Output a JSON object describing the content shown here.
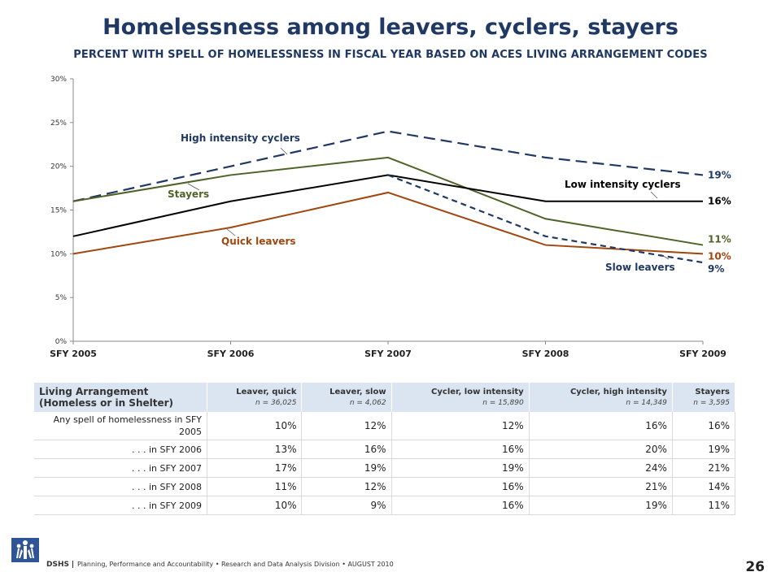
{
  "header": {
    "title": "Homelessness among leavers, cyclers, stayers",
    "subtitle": "PERCENT WITH SPELL OF HOMELESSNESS IN FISCAL YEAR BASED ON ACES LIVING ARRANGEMENT CODES"
  },
  "chart_data": {
    "type": "line",
    "categories": [
      "SFY 2005",
      "SFY 2006",
      "SFY 2007",
      "SFY 2008",
      "SFY 2009"
    ],
    "ylim": [
      0,
      30
    ],
    "yticks": [
      "0%",
      "5%",
      "10%",
      "15%",
      "20%",
      "25%",
      "30%"
    ],
    "grid": false,
    "series": [
      {
        "name": "High intensity cyclers",
        "values": [
          16,
          20,
          24,
          21,
          19
        ],
        "color": "#1f3864",
        "dash": "long",
        "end_label": "19%"
      },
      {
        "name": "Stayers",
        "values": [
          16,
          19,
          21,
          14,
          11
        ],
        "color": "#4f6228",
        "dash": "solid",
        "end_label": "11%"
      },
      {
        "name": "Low intensity cyclers",
        "values": [
          12,
          16,
          19,
          16,
          16
        ],
        "color": "#000000",
        "dash": "solid",
        "end_label": "16%"
      },
      {
        "name": "Quick leavers",
        "values": [
          10,
          13,
          17,
          11,
          10
        ],
        "color": "#a0460f",
        "dash": "solid",
        "end_label": "10%"
      },
      {
        "name": "Slow leavers",
        "values": [
          null,
          null,
          19,
          12,
          9
        ],
        "color": "#1f3864",
        "dash": "short",
        "end_label": "9%"
      }
    ]
  },
  "table": {
    "header_first": "Living Arrangement (Homeless or in Shelter)",
    "columns": [
      {
        "label": "Leaver, quick",
        "n": "n = 36,025"
      },
      {
        "label": "Leaver, slow",
        "n": "n = 4,062"
      },
      {
        "label": "Cycler, low intensity",
        "n": "n = 15,890"
      },
      {
        "label": "Cycler, high intensity",
        "n": "n = 14,349"
      },
      {
        "label": "Stayers",
        "n": "n = 3,595"
      }
    ],
    "rows": [
      {
        "label": "Any spell of homelessness in SFY 2005",
        "values": [
          "10%",
          "12%",
          "12%",
          "16%",
          "16%"
        ]
      },
      {
        "label": ". . . in SFY 2006",
        "values": [
          "13%",
          "16%",
          "16%",
          "20%",
          "19%"
        ]
      },
      {
        "label": ". . . in SFY 2007",
        "values": [
          "17%",
          "19%",
          "19%",
          "24%",
          "21%"
        ]
      },
      {
        "label": ". . . in SFY 2008",
        "values": [
          "11%",
          "12%",
          "16%",
          "21%",
          "14%"
        ]
      },
      {
        "label": ". . . in SFY 2009",
        "values": [
          "10%",
          "9%",
          "16%",
          "19%",
          "11%"
        ]
      }
    ]
  },
  "footer": {
    "org": "DSHS",
    "text": "Planning, Performance and Accountability • Research and Data Analysis Division • AUGUST 2010",
    "page": "26",
    "logo_icon": "dshs-logo-icon"
  }
}
